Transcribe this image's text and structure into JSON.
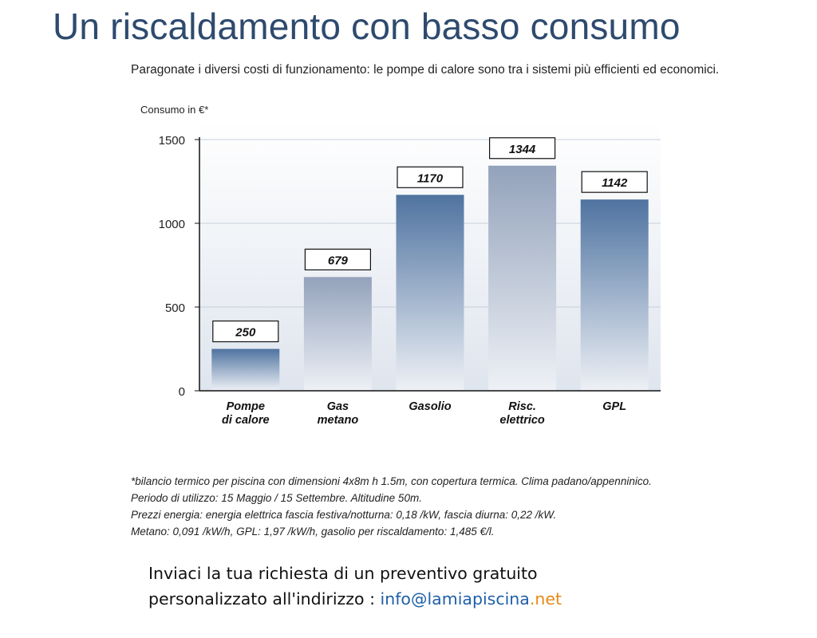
{
  "header": {
    "title": "Un riscaldamento con basso consumo",
    "subtitle": "Paragonate i diversi costi di funzionamento: le pompe di calore sono tra i sistemi più efficienti ed economici."
  },
  "chart_data": {
    "type": "bar",
    "ylabel": "Consumo in €*",
    "ylim": [
      0,
      1500
    ],
    "yticks": [
      "0",
      "500",
      "1000",
      "1500"
    ],
    "grid": true,
    "categories": [
      [
        "Pompe",
        "di calore"
      ],
      [
        "Gas",
        "metano"
      ],
      [
        "Gasolio"
      ],
      [
        "Risc.",
        "elettrico"
      ],
      [
        "GPL"
      ]
    ],
    "values": [
      250,
      679,
      1170,
      1344,
      1142
    ],
    "bar_styles": [
      "blue",
      "grey",
      "blue",
      "grey",
      "blue"
    ],
    "colors": {
      "blue_top": "#4f73a0",
      "grey_top": "#93a2bb",
      "bar_bottom": "#eef1f6",
      "grid": "#c7cedc",
      "axis": "#111111"
    }
  },
  "footnotes": [
    "*bilancio termico per piscina con dimensioni 4x8m h 1.5m, con copertura termica. Clima padano/appenninico.",
    "Periodo di utilizzo: 15 Maggio / 15 Settembre. Altitudine 50m.",
    "Prezzi energia: energia elettrica fascia festiva/notturna: 0,18  /kW, fascia diurna: 0,22 /kW.",
    "Metano: 0,091  /kW/h, GPL: 1,97  /kW/h, gasolio per riscaldamento: 1,485 €/l."
  ],
  "cta": {
    "line1": "Inviaci la tua richiesta di un preventivo gratuito",
    "line2_prefix": "personalizzato all'indirizzo : ",
    "email_user": "info@lamiapiscina",
    "email_tld": ".net"
  }
}
